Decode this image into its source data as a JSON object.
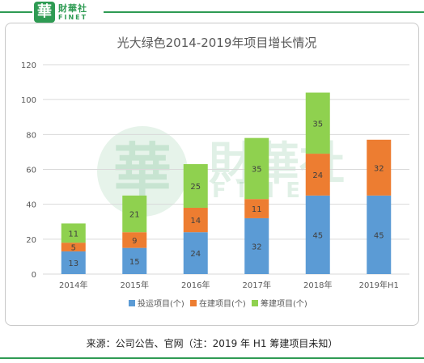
{
  "logo": {
    "badge": "華",
    "name_cn": "財華社",
    "name_en": "FINET"
  },
  "watermark": {
    "badge": "華",
    "name_cn": "財華社",
    "name_en": "FINET"
  },
  "colors": {
    "brand": "#2e9b53",
    "series": [
      "#5b9bd5",
      "#ed7d31",
      "#8fd14f"
    ],
    "grid": "#d9d9d9",
    "text": "#595959"
  },
  "source_text": "来源：公司公告、官网（注：2019 年 H1 筹建项目未知）",
  "chart_data": {
    "type": "bar",
    "stacked": true,
    "title": "光大绿色2014-2019年项目增长情况",
    "categories": [
      "2014年",
      "2015年",
      "2016年",
      "2017年",
      "2018年",
      "2019年H1"
    ],
    "series": [
      {
        "name": "投运项目(个)",
        "values": [
          13,
          15,
          24,
          32,
          45,
          45
        ]
      },
      {
        "name": "在建项目(个)",
        "values": [
          5,
          9,
          14,
          11,
          24,
          32
        ]
      },
      {
        "name": "筹建项目(个)",
        "values": [
          11,
          21,
          25,
          35,
          35,
          null
        ]
      }
    ],
    "ylim": [
      0,
      120
    ],
    "yticks": [
      0,
      20,
      40,
      60,
      80,
      100,
      120
    ],
    "grid": true,
    "legend": "bottom"
  }
}
